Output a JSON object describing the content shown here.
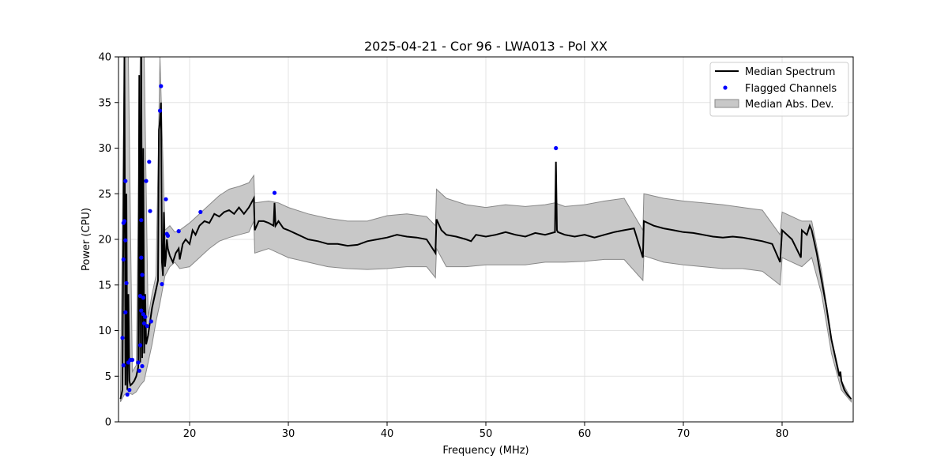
{
  "chart_data": {
    "type": "line",
    "title": "2025-04-21 - Cor 96 - LWA013 - Pol XX",
    "xlabel": "Frequency (MHz)",
    "ylabel": "Power (CPU)",
    "xlim": [
      12.8,
      87.2
    ],
    "ylim": [
      0,
      40
    ],
    "xticks": [
      20,
      30,
      40,
      50,
      60,
      70,
      80
    ],
    "yticks": [
      0,
      5,
      10,
      15,
      20,
      25,
      30,
      35,
      40
    ],
    "grid": true,
    "legend_position": "top-right",
    "legend": [
      "Median Spectrum",
      "Flagged Channels",
      "Median Abs. Dev."
    ],
    "colors": {
      "median": "#000000",
      "flagged": "#0000ff",
      "mad_fill": "#c8c8c8",
      "mad_edge": "#888888"
    },
    "series": [
      {
        "name": "Median Spectrum",
        "x": [
          13.0,
          13.2,
          13.4,
          13.5,
          13.6,
          13.7,
          13.8,
          13.9,
          14.0,
          14.2,
          14.4,
          14.6,
          14.8,
          14.9,
          15.0,
          15.1,
          15.2,
          15.3,
          15.4,
          15.5,
          15.6,
          15.8,
          16.0,
          16.2,
          16.4,
          16.6,
          16.8,
          16.9,
          17.0,
          17.1,
          17.2,
          17.3,
          17.4,
          17.5,
          17.6,
          17.7,
          17.8,
          18.0,
          18.3,
          18.6,
          18.9,
          19.0,
          19.3,
          19.6,
          20.0,
          20.3,
          20.6,
          21.0,
          21.5,
          22.0,
          22.5,
          23.0,
          23.5,
          24.0,
          24.5,
          25.0,
          25.5,
          26.0,
          26.5,
          26.6,
          27.0,
          27.5,
          28.0,
          28.5,
          28.6,
          28.7,
          29.0,
          29.5,
          30.0,
          31.0,
          32.0,
          33.0,
          34.0,
          35.0,
          36.0,
          37.0,
          38.0,
          39.0,
          40.0,
          41.0,
          42.0,
          43.0,
          44.0,
          44.9,
          45.0,
          45.5,
          46.0,
          47.0,
          48.0,
          48.5,
          49.0,
          50.0,
          51.0,
          52.0,
          53.0,
          54.0,
          55.0,
          56.0,
          57.0,
          57.1,
          57.2,
          57.3,
          58.0,
          59.0,
          60.0,
          61.0,
          62.0,
          63.0,
          64.0,
          65.0,
          65.9,
          66.0,
          67.0,
          68.0,
          69.0,
          70.0,
          71.0,
          72.0,
          73.0,
          74.0,
          75.0,
          76.0,
          77.0,
          78.0,
          79.0,
          79.8,
          80.0,
          81.0,
          81.9,
          82.0,
          82.5,
          82.8,
          83.0,
          83.5,
          84.0,
          84.5,
          85.0,
          85.3,
          85.6,
          85.8,
          85.9,
          86.0,
          86.3,
          86.6,
          87.0
        ],
        "y": [
          2.5,
          3.5,
          40.0,
          4.0,
          25.0,
          3.5,
          14.0,
          4.5,
          4.0,
          4.2,
          4.5,
          5.0,
          6.0,
          38.0,
          6.5,
          40.0,
          7.0,
          30.0,
          7.5,
          14.0,
          8.5,
          9.5,
          11.0,
          12.5,
          13.5,
          14.5,
          15.5,
          32.0,
          33.0,
          35.0,
          17.5,
          16.0,
          23.0,
          17.0,
          18.0,
          20.0,
          19.0,
          18.2,
          17.5,
          18.5,
          19.0,
          17.8,
          19.5,
          20.0,
          19.5,
          21.0,
          20.5,
          21.5,
          22.0,
          21.8,
          22.8,
          22.5,
          23.0,
          23.2,
          22.8,
          23.5,
          22.8,
          23.5,
          24.5,
          21.0,
          22.0,
          22.0,
          21.8,
          21.5,
          24.0,
          21.5,
          22.0,
          21.2,
          21.0,
          20.5,
          20.0,
          19.8,
          19.5,
          19.5,
          19.3,
          19.4,
          19.8,
          20.0,
          20.2,
          20.5,
          20.3,
          20.2,
          20.0,
          18.5,
          22.2,
          21.0,
          20.5,
          20.3,
          20.0,
          19.8,
          20.5,
          20.3,
          20.5,
          20.8,
          20.5,
          20.3,
          20.7,
          20.5,
          20.8,
          28.5,
          21.0,
          20.8,
          20.5,
          20.3,
          20.5,
          20.2,
          20.5,
          20.8,
          21.0,
          21.2,
          18.0,
          22.0,
          21.5,
          21.2,
          21.0,
          20.8,
          20.7,
          20.5,
          20.3,
          20.2,
          20.3,
          20.2,
          20.0,
          19.8,
          19.5,
          17.5,
          21.0,
          20.0,
          18.0,
          21.0,
          20.5,
          21.5,
          21.0,
          18.5,
          15.5,
          12.5,
          9.0,
          7.5,
          6.0,
          5.0,
          5.5,
          4.5,
          3.5,
          3.0,
          2.5
        ]
      },
      {
        "name": "Flagged Channels",
        "x": [
          13.2,
          13.3,
          13.3,
          13.3,
          13.4,
          13.5,
          13.5,
          13.5,
          13.6,
          13.7,
          13.8,
          13.9,
          14.0,
          14.2,
          14.8,
          14.9,
          15.0,
          15.0,
          15.1,
          15.1,
          15.1,
          15.2,
          15.2,
          15.3,
          15.3,
          15.4,
          15.5,
          15.6,
          15.7,
          15.9,
          16.0,
          16.1,
          17.0,
          17.1,
          17.2,
          17.6,
          17.7,
          17.8,
          18.9,
          21.1,
          28.6,
          57.1
        ],
        "y": [
          9.2,
          17.8,
          21.8,
          6.2,
          22.0,
          19.9,
          26.4,
          12.0,
          15.2,
          3.0,
          6.5,
          3.5,
          6.8,
          6.8,
          6.5,
          5.6,
          8.4,
          13.8,
          22.1,
          12.2,
          18.0,
          6.1,
          16.1,
          13.6,
          11.8,
          10.8,
          11.5,
          26.4,
          10.5,
          28.5,
          23.1,
          11.0,
          34.1,
          36.8,
          15.1,
          24.4,
          20.6,
          20.4,
          20.9,
          23.0,
          25.1,
          30.0
        ]
      },
      {
        "name": "Median Abs. Dev.",
        "x": [
          13.0,
          13.4,
          13.8,
          14.2,
          14.6,
          15.0,
          15.4,
          15.8,
          16.2,
          16.6,
          17.0,
          17.5,
          18.0,
          18.5,
          19.0,
          20.0,
          21.0,
          22.0,
          23.0,
          24.0,
          25.0,
          26.0,
          26.5,
          26.6,
          28.0,
          29.0,
          30.0,
          32.0,
          34.0,
          36.0,
          38.0,
          40.0,
          42.0,
          44.0,
          44.9,
          45.0,
          46.0,
          48.0,
          50.0,
          52.0,
          54.0,
          56.0,
          57.0,
          58.0,
          60.0,
          62.0,
          64.0,
          65.9,
          66.0,
          68.0,
          70.0,
          72.0,
          74.0,
          76.0,
          78.0,
          79.8,
          80.0,
          82.0,
          83.0,
          84.0,
          85.0,
          86.0,
          87.0
        ],
        "upper": [
          3.5,
          40.0,
          40.0,
          5.5,
          6.2,
          40.0,
          40.0,
          11.5,
          14.0,
          16.0,
          40.0,
          21.0,
          21.5,
          20.8,
          21.0,
          21.8,
          22.8,
          23.8,
          24.8,
          25.5,
          25.8,
          26.2,
          27.0,
          24.0,
          24.2,
          24.0,
          23.5,
          22.8,
          22.3,
          22.0,
          22.0,
          22.6,
          22.8,
          22.5,
          21.5,
          25.5,
          24.5,
          23.8,
          23.5,
          23.8,
          23.6,
          23.8,
          24.0,
          23.6,
          23.8,
          24.2,
          24.5,
          21.0,
          25.0,
          24.5,
          24.2,
          24.0,
          23.8,
          23.5,
          23.2,
          20.5,
          23.0,
          22.0,
          22.0,
          16.5,
          9.0,
          4.5,
          2.5
        ],
        "lower": [
          2.2,
          3.0,
          3.2,
          3.0,
          3.3,
          4.0,
          4.5,
          6.5,
          8.5,
          11.0,
          13.0,
          16.0,
          17.0,
          17.5,
          16.8,
          17.0,
          18.0,
          19.0,
          19.8,
          20.2,
          20.5,
          20.8,
          22.0,
          18.5,
          19.0,
          18.5,
          18.0,
          17.5,
          17.0,
          16.8,
          16.7,
          16.8,
          17.0,
          17.0,
          15.8,
          19.0,
          17.0,
          17.0,
          17.2,
          17.2,
          17.2,
          17.5,
          17.5,
          17.5,
          17.6,
          17.8,
          17.8,
          15.5,
          18.2,
          17.5,
          17.2,
          17.0,
          16.8,
          16.8,
          16.5,
          15.0,
          18.0,
          17.0,
          18.0,
          14.0,
          7.5,
          3.5,
          2.2
        ]
      }
    ]
  }
}
